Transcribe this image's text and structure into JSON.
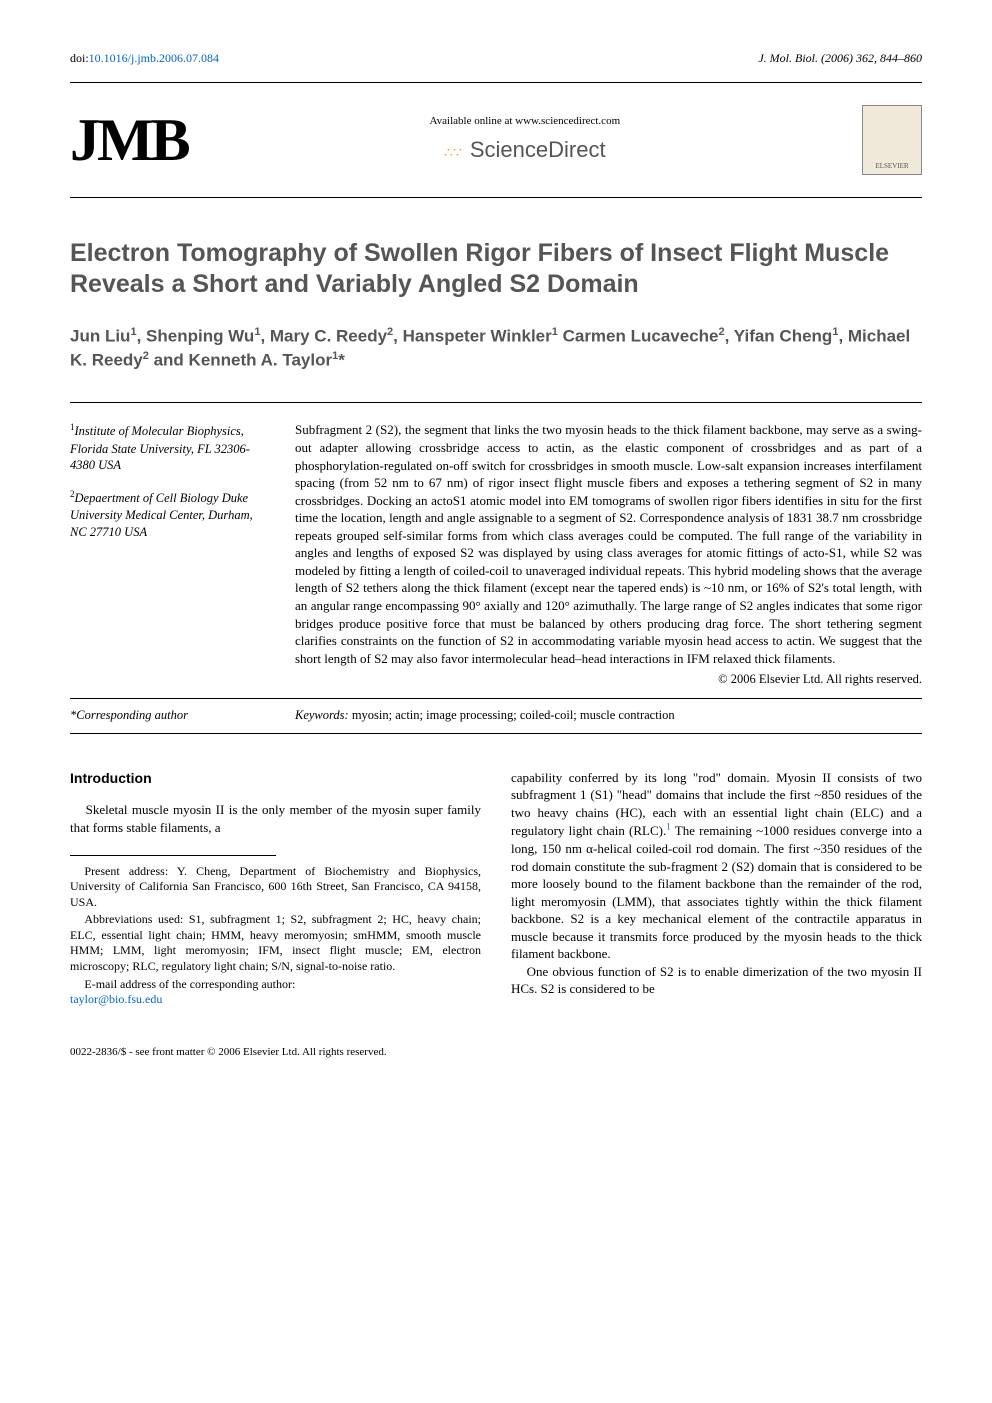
{
  "top": {
    "doi_prefix": "doi:",
    "doi": "10.1016/j.jmb.2006.07.084",
    "journal_ref": "J. Mol. Biol. (2006) 362, 844–860"
  },
  "header": {
    "jmb_logo": "JMB",
    "sd_available": "Available online at www.sciencedirect.com",
    "sd_name": "ScienceDirect",
    "elsevier": "ELSEVIER"
  },
  "title": "Electron Tomography of Swollen Rigor Fibers of Insect Flight Muscle Reveals a Short and Variably Angled S2 Domain",
  "authors_html": "Jun Liu<sup>1</sup>, Shenping Wu<sup>1</sup>, Mary C. Reedy<sup>2</sup>, Hanspeter Winkler<sup>1</sup> Carmen Lucaveche<sup>2</sup>, Yifan Cheng<sup>1</sup>, Michael K. Reedy<sup>2</sup> and Kenneth A. Taylor<sup>1</sup>*",
  "affiliations": {
    "a1": "Institute of Molecular Biophysics, Florida State University, FL 32306-4380 USA",
    "a2": "Depaertment of Cell Biology Duke University Medical Center, Durham, NC 27710 USA"
  },
  "abstract": "Subfragment 2 (S2), the segment that links the two myosin heads to the thick filament backbone, may serve as a swing-out adapter allowing crossbridge access to actin, as the elastic component of crossbridges and as part of a phosphorylation-regulated on-off switch for crossbridges in smooth muscle. Low-salt expansion increases interfilament spacing (from 52 nm to 67 nm) of rigor insect flight muscle fibers and exposes a tethering segment of S2 in many crossbridges. Docking an actoS1 atomic model into EM tomograms of swollen rigor fibers identifies in situ for the first time the location, length and angle assignable to a segment of S2. Correspondence analysis of 1831 38.7 nm crossbridge repeats grouped self-similar forms from which class averages could be computed. The full range of the variability in angles and lengths of exposed S2 was displayed by using class averages for atomic fittings of acto-S1, while S2 was modeled by fitting a length of coiled-coil to unaveraged individual repeats. This hybrid modeling shows that the average length of S2 tethers along the thick filament (except near the tapered ends) is ~10 nm, or 16% of S2's total length, with an angular range encompassing 90° axially and 120° azimuthally. The large range of S2 angles indicates that some rigor bridges produce positive force that must be balanced by others producing drag force. The short tethering segment clarifies constraints on the function of S2 in accommodating variable myosin head access to actin. We suggest that the short length of S2 may also favor intermolecular head–head interactions in IFM relaxed thick filaments.",
  "copyright": "© 2006 Elsevier Ltd. All rights reserved.",
  "corresponding": "*Corresponding author",
  "keywords_label": "Keywords:",
  "keywords": " myosin; actin; image processing; coiled-coil; muscle contraction",
  "intro_heading": "Introduction",
  "intro_left": "Skeletal muscle myosin II is the only member of the myosin super family that forms stable filaments, a",
  "footnotes": {
    "present": "Present address: Y. Cheng, Department of Biochemistry and Biophysics, University of California San Francisco, 600 16th Street, San Francisco, CA 94158, USA.",
    "abbrev": "Abbreviations used: S1, subfragment 1; S2, subfragment 2; HC, heavy chain; ELC, essential light chain; HMM, heavy meromyosin; smHMM, smooth muscle HMM; LMM, light meromyosin; IFM, insect flight muscle; EM, electron microscopy; RLC, regulatory light chain; S/N, signal-to-noise ratio.",
    "email_label": "E-mail address of the corresponding author:",
    "email": "taylor@bio.fsu.edu"
  },
  "intro_right_p1": "capability conferred by its long \"rod\" domain. Myosin II consists of two subfragment 1 (S1) \"head\" domains that include the first ~850 residues of the two heavy chains (HC), each with an essential light chain (ELC) and a regulatory light chain (RLC). The remaining ~1000 residues converge into a long, 150 nm α-helical coiled-coil rod domain. The first ~350 residues of the rod domain constitute the sub-fragment 2 (S2) domain that is considered to be more loosely bound to the filament backbone than the remainder of the rod, light meromyosin (LMM), that associates tightly within the thick filament backbone. S2 is a key mechanical element of the contractile apparatus in muscle because it transmits force produced by the myosin heads to the thick filament backbone.",
  "intro_right_ref1": "1",
  "intro_right_p2": "One obvious function of S2 is to enable dimerization of the two myosin II HCs. S2 is considered to be",
  "bottom": "0022-2836/$ - see front matter © 2006 Elsevier Ltd. All rights reserved.",
  "colors": {
    "link": "#0066cc",
    "heading_gray": "#555555",
    "text": "#000000",
    "background": "#ffffff"
  },
  "typography": {
    "body_family": "Georgia, Times New Roman, serif",
    "heading_family": "Arial, Helvetica, sans-serif",
    "title_size_pt": 19,
    "author_size_pt": 13,
    "body_size_pt": 10,
    "footnote_size_pt": 9
  }
}
